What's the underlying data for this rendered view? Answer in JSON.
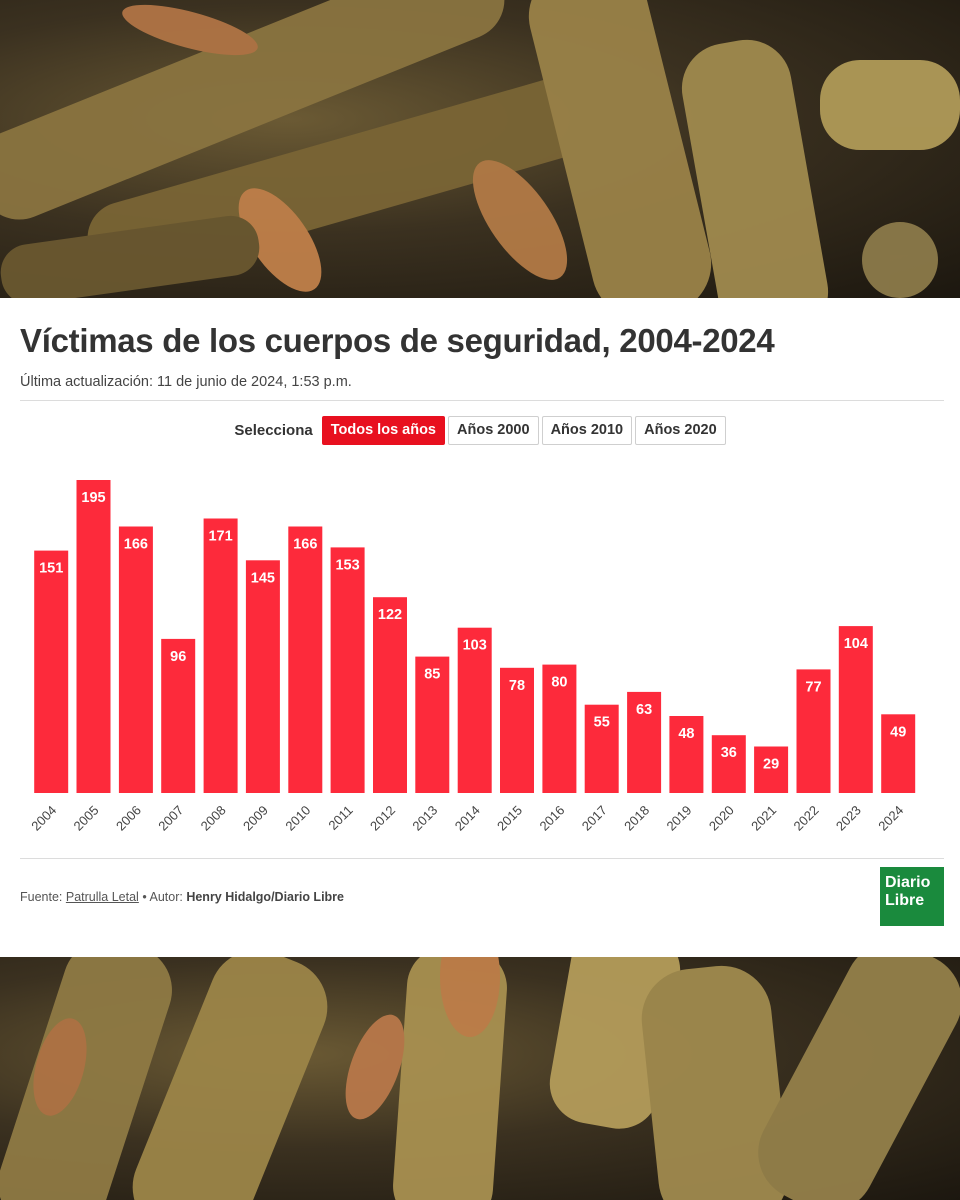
{
  "header": {
    "title": "Víctimas de los cuerpos de seguridad, 2004-2024",
    "updated": "Última actualización: 11 de junio de 2024, 1:53 p.m."
  },
  "filters": {
    "label": "Selecciona",
    "options": [
      "Todos los años",
      "Años 2000",
      "Años 2010",
      "Años 2020"
    ],
    "selected": "Todos los años",
    "active_color": "#e8101f"
  },
  "footer": {
    "source_prefix": "Fuente:",
    "source_name": "Patrulla Letal",
    "author_prefix": "• Autor:",
    "author_name": "Henry Hidalgo/Diario Libre"
  },
  "logo": {
    "line1": "Diario",
    "line2": "Libre",
    "color": "#1a8a3d"
  },
  "chart_data": {
    "type": "bar",
    "title": "Víctimas de los cuerpos de seguridad, 2004-2024",
    "categories": [
      "2004",
      "2005",
      "2006",
      "2007",
      "2008",
      "2009",
      "2010",
      "2011",
      "2012",
      "2013",
      "2014",
      "2015",
      "2016",
      "2017",
      "2018",
      "2019",
      "2020",
      "2021",
      "2022",
      "2023",
      "2024"
    ],
    "values": [
      151,
      195,
      166,
      96,
      171,
      145,
      166,
      153,
      122,
      85,
      103,
      78,
      80,
      55,
      63,
      48,
      36,
      29,
      77,
      104,
      49
    ],
    "data_labels": true,
    "bar_color": "#fd2a3b",
    "ylim": [
      0,
      195
    ],
    "grid": false,
    "legend": "none"
  }
}
